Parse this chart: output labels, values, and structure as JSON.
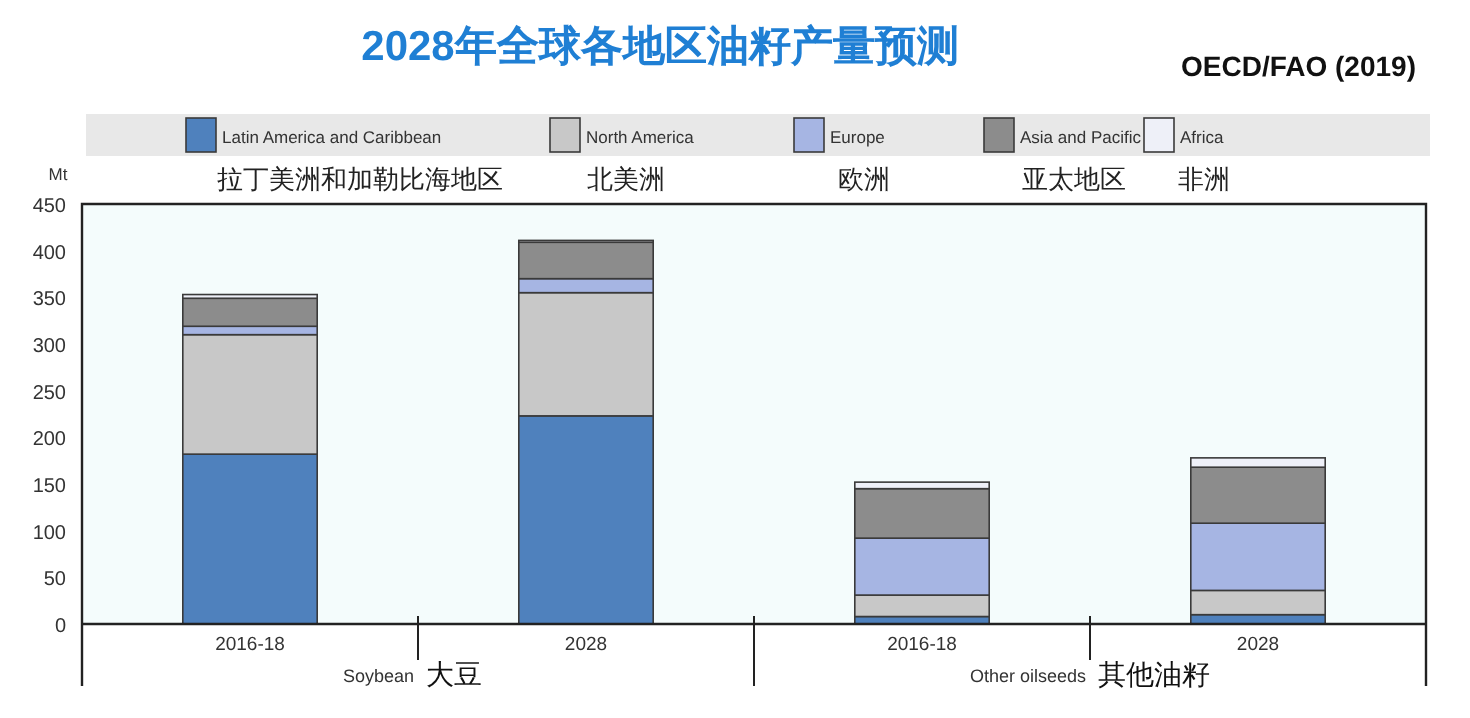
{
  "chart_data": {
    "type": "bar",
    "stacked": true,
    "title": "2028年全球各地区油籽产量预测",
    "ylabel": "Mt",
    "categories": [
      "2016-18",
      "2028",
      "2016-18",
      "2028"
    ],
    "series": [
      {
        "name": "Latin America and Caribbean",
        "color": "#4f81bd",
        "values": [
          182,
          223,
          8,
          10
        ]
      },
      {
        "name": "North America",
        "color": "#c8c8c8",
        "values": [
          128,
          132,
          23,
          26
        ]
      },
      {
        "name": "Europe",
        "color": "#a6b5e3",
        "values": [
          9,
          15,
          61,
          72
        ]
      },
      {
        "name": "Asia and Pacific",
        "color": "#8c8c8c",
        "values": [
          30,
          39,
          53,
          60
        ]
      },
      {
        "name": "Africa",
        "color": "#eef0f8",
        "values": [
          4,
          2,
          7,
          10
        ]
      }
    ],
    "ylim": [
      0,
      450
    ],
    "yticks": [
      0,
      50,
      100,
      150,
      200,
      250,
      300,
      350,
      400,
      450
    ],
    "legend": "top",
    "grid": false,
    "annotations": [
      "OECD/FAO (2019)",
      "拉丁美洲和加勒比海地区",
      "北美洲",
      "欧洲",
      "亚太地区",
      "非洲",
      "Soybean",
      "大豆",
      "Other oilseeds",
      "其他油籽"
    ]
  }
}
